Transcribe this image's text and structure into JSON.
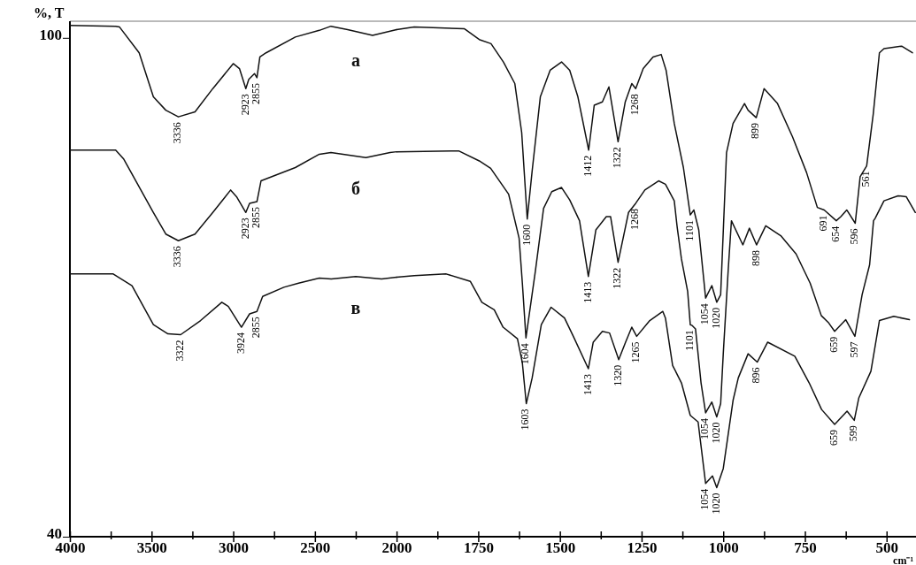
{
  "chart_data": [
    {
      "type": "line",
      "ylabel": "%, T",
      "xlim": [
        4000,
        2000
      ],
      "ylim": [
        40,
        102
      ],
      "xticks": [
        4000,
        {
          "value": 3750,
          "label": null
        },
        3500,
        {
          "value": 3250,
          "label": null
        },
        3000,
        {
          "value": 2750,
          "label": null
        },
        2500,
        {
          "value": 2250,
          "label": null
        },
        2000
      ],
      "yticks": [
        40,
        100
      ],
      "series": [
        {
          "name": "а",
          "color": "#111111",
          "x": [
            4000,
            3720,
            3696,
            3576,
            3489,
            3413,
            3336,
            3234,
            3125,
            3000,
            2962,
            2923,
            2905,
            2870,
            2855,
            2837,
            2799,
            2620,
            2473,
            2402,
            2300,
            2147,
            2000
          ],
          "values": [
            101.5,
            101.4,
            101.3,
            98.2,
            92.9,
            91.3,
            90.5,
            91.1,
            93.9,
            96.9,
            96.3,
            93.9,
            95,
            95.7,
            95.2,
            97.7,
            98.2,
            100.1,
            100.9,
            101.4,
            101,
            100.3,
            101
          ]
        },
        {
          "name": "б",
          "color": "#111111",
          "x": [
            4000,
            3720,
            3670,
            3489,
            3413,
            3336,
            3234,
            3125,
            3016,
            2980,
            2923,
            2900,
            2855,
            2830,
            2620,
            2473,
            2402,
            2188,
            2040,
            2000
          ],
          "values": [
            86.5,
            86.5,
            85.4,
            79,
            76.4,
            75.6,
            76.4,
            79,
            81.7,
            80.9,
            79,
            80.1,
            80.3,
            82.8,
            84.4,
            86,
            86.2,
            85.6,
            86.2,
            86.3
          ]
        },
        {
          "name": "в",
          "color": "#111111",
          "x": [
            4000,
            3735,
            3620,
            3489,
            3400,
            3322,
            3200,
            3070,
            3030,
            2950,
            2900,
            2855,
            2820,
            2690,
            2600,
            2473,
            2400,
            2250,
            2092,
            2000
          ],
          "values": [
            71.6,
            71.6,
            70.2,
            65.5,
            64.4,
            64.3,
            66,
            68.2,
            67.7,
            65.2,
            66.8,
            67.1,
            68.9,
            70,
            70.5,
            71.1,
            71,
            71.3,
            71,
            71.2
          ]
        }
      ],
      "annotations": [
        {
          "text": "3336",
          "x": 3336,
          "y": 90.5
        },
        {
          "text": "2923",
          "x": 2923,
          "y": 93.9
        },
        {
          "text": "2855",
          "x": 2855,
          "y": 95.2
        },
        {
          "text": "3336",
          "x": 3336,
          "y": 75.6
        },
        {
          "text": "2923",
          "x": 2923,
          "y": 79
        },
        {
          "text": "2855",
          "x": 2855,
          "y": 80.3
        },
        {
          "text": "3322",
          "x": 3322,
          "y": 64.3
        },
        {
          "text": "3924",
          "x": 2950,
          "y": 65.2
        },
        {
          "text": "2855",
          "x": 2855,
          "y": 67.1
        }
      ]
    },
    {
      "type": "line",
      "xlabel": "cm⁻¹",
      "tick_labels": "x",
      "xlim": [
        2000,
        410
      ],
      "ylim": [
        40,
        102
      ],
      "xticks": [
        {
          "value": 1875,
          "label": null
        },
        1750,
        {
          "value": 1625,
          "label": null
        },
        1500,
        {
          "value": 1375,
          "label": null
        },
        1250,
        {
          "value": 1125,
          "label": null
        },
        1000,
        {
          "value": 875,
          "label": null
        },
        750,
        {
          "value": 625,
          "label": null
        },
        500
      ],
      "series": [
        {
          "color": "#111111",
          "x": [
            2000,
            1946,
            1793,
            1747,
            1711,
            1673,
            1638,
            1617,
            1600,
            1585,
            1560,
            1530,
            1495,
            1470,
            1445,
            1412,
            1395,
            1370,
            1350,
            1322,
            1300,
            1280,
            1268,
            1245,
            1215,
            1190,
            1175,
            1150,
            1122,
            1101,
            1090,
            1075,
            1054,
            1035,
            1020,
            1008,
            990,
            970,
            935,
            924,
            899,
            875,
            834,
            788,
            745,
            712,
            691,
            654,
            640,
            622,
            596,
            581,
            561,
            541,
            522,
            508,
            454,
            421
          ],
          "values": [
            101,
            101.3,
            101.1,
            99.8,
            99.3,
            97.1,
            94.5,
            88.6,
            78.2,
            84,
            92.9,
            96.1,
            97.1,
            96.1,
            92.9,
            86.5,
            91.9,
            92.3,
            94.1,
            87.5,
            92.3,
            94.5,
            93.9,
            96.3,
            97.7,
            98,
            96.1,
            89.7,
            84.4,
            78.7,
            79.3,
            76.9,
            68.7,
            70.2,
            68.2,
            69.1,
            86.2,
            89.7,
            92.1,
            91.3,
            90.4,
            93.9,
            92.1,
            88.1,
            83.8,
            79.6,
            79.3,
            78,
            78.5,
            79.3,
            77.7,
            83.3,
            84.6,
            90.8,
            98.2,
            98.7,
            99,
            98.2
          ]
        },
        {
          "color": "#111111",
          "x": [
            2000,
            1810,
            1747,
            1712,
            1657,
            1625,
            1615,
            1604,
            1575,
            1550,
            1525,
            1495,
            1470,
            1440,
            1413,
            1390,
            1358,
            1345,
            1322,
            1290,
            1268,
            1240,
            1198,
            1177,
            1150,
            1141,
            1128,
            1109,
            1101,
            1095,
            1085,
            1068,
            1054,
            1035,
            1020,
            1008,
            1000,
            985,
            975,
            940,
            920,
            898,
            870,
            824,
            777,
            734,
            700,
            677,
            659,
            625,
            597,
            575,
            552,
            540,
            535,
            508,
            465,
            440,
            412
          ],
          "values": [
            86.3,
            86.4,
            85.2,
            84.3,
            81.2,
            75.9,
            70.5,
            63.9,
            72,
            79.5,
            81.5,
            82,
            80.5,
            78,
            71.3,
            76.9,
            78.5,
            78.5,
            73,
            79,
            80.1,
            81.7,
            82.8,
            82.4,
            80.4,
            77.2,
            73.4,
            69.5,
            65.5,
            65.4,
            65,
            58.5,
            54.9,
            56.2,
            54.4,
            56,
            62,
            72,
            78,
            75.1,
            77.1,
            75.1,
            77.4,
            76.2,
            74,
            70.5,
            66.6,
            65.7,
            64.7,
            66.1,
            64.1,
            69.1,
            72.7,
            78,
            78.3,
            80.4,
            81,
            80.9,
            79
          ]
        },
        {
          "color": "#111111",
          "x": [
            2000,
            1946,
            1848,
            1774,
            1739,
            1701,
            1674,
            1630,
            1615,
            1603,
            1585,
            1557,
            1527,
            1486,
            1459,
            1413,
            1398,
            1370,
            1348,
            1320,
            1299,
            1280,
            1265,
            1225,
            1185,
            1177,
            1155,
            1128,
            1101,
            1077,
            1054,
            1033,
            1020,
            1000,
            970,
            954,
            924,
            896,
            864,
            781,
            737,
            699,
            659,
            621,
            599,
            585,
            548,
            522,
            478,
            430
          ],
          "values": [
            71.2,
            71.4,
            71.6,
            70.7,
            68.2,
            67.3,
            65.2,
            63.8,
            60.9,
            56,
            59.1,
            65.5,
            67.6,
            66.3,
            64.1,
            60.2,
            63.4,
            64.7,
            64.5,
            61.3,
            63.4,
            65.2,
            64.1,
            66,
            67.1,
            66.3,
            60.6,
            58.5,
            54.6,
            53.8,
            46.4,
            47.3,
            45.9,
            48.2,
            56.4,
            59.1,
            62,
            61,
            63.4,
            61.7,
            58.5,
            55.3,
            53.5,
            55.1,
            54,
            56.7,
            59.9,
            66,
            66.5,
            66.1
          ]
        }
      ],
      "annotations": [
        {
          "text": "1600",
          "x": 1600,
          "y": 78.2
        },
        {
          "text": "1412",
          "x": 1412,
          "y": 86.5
        },
        {
          "text": "1322",
          "x": 1322,
          "y": 87.5
        },
        {
          "text": "1268",
          "x": 1268,
          "y": 93.9
        },
        {
          "text": "1101",
          "x": 1101,
          "y": 78.7
        },
        {
          "text": "1054",
          "x": 1054,
          "y": 68.7
        },
        {
          "text": "1020",
          "x": 1020,
          "y": 68.2
        },
        {
          "text": "899",
          "x": 899,
          "y": 90.4
        },
        {
          "text": "691",
          "x": 691,
          "y": 79.3
        },
        {
          "text": "654",
          "x": 654,
          "y": 78
        },
        {
          "text": "596",
          "x": 596,
          "y": 77.7
        },
        {
          "text": "561",
          "x": 561,
          "y": 84.6
        },
        {
          "text": "1604",
          "x": 1604,
          "y": 63.9
        },
        {
          "text": "1413",
          "x": 1413,
          "y": 71.3
        },
        {
          "text": "1322",
          "x": 1322,
          "y": 73
        },
        {
          "text": "1268",
          "x": 1268,
          "y": 80.1
        },
        {
          "text": "1101",
          "x": 1101,
          "y": 65.5
        },
        {
          "text": "1054",
          "x": 1054,
          "y": 54.9
        },
        {
          "text": "1020",
          "x": 1020,
          "y": 54.4
        },
        {
          "text": "898",
          "x": 898,
          "y": 75.1
        },
        {
          "text": "659",
          "x": 659,
          "y": 64.7
        },
        {
          "text": "597",
          "x": 597,
          "y": 64.1
        },
        {
          "text": "1603",
          "x": 1603,
          "y": 56
        },
        {
          "text": "1413",
          "x": 1413,
          "y": 60.2
        },
        {
          "text": "1320",
          "x": 1320,
          "y": 61.3
        },
        {
          "text": "1265",
          "x": 1265,
          "y": 64.1
        },
        {
          "text": "896",
          "x": 896,
          "y": 61
        },
        {
          "text": "659",
          "x": 659,
          "y": 53.5
        },
        {
          "text": "599",
          "x": 599,
          "y": 54
        },
        {
          "text": "1054",
          "x": 1054,
          "y": 46.4
        },
        {
          "text": "1020",
          "x": 1020,
          "y": 45.9
        }
      ]
    }
  ]
}
